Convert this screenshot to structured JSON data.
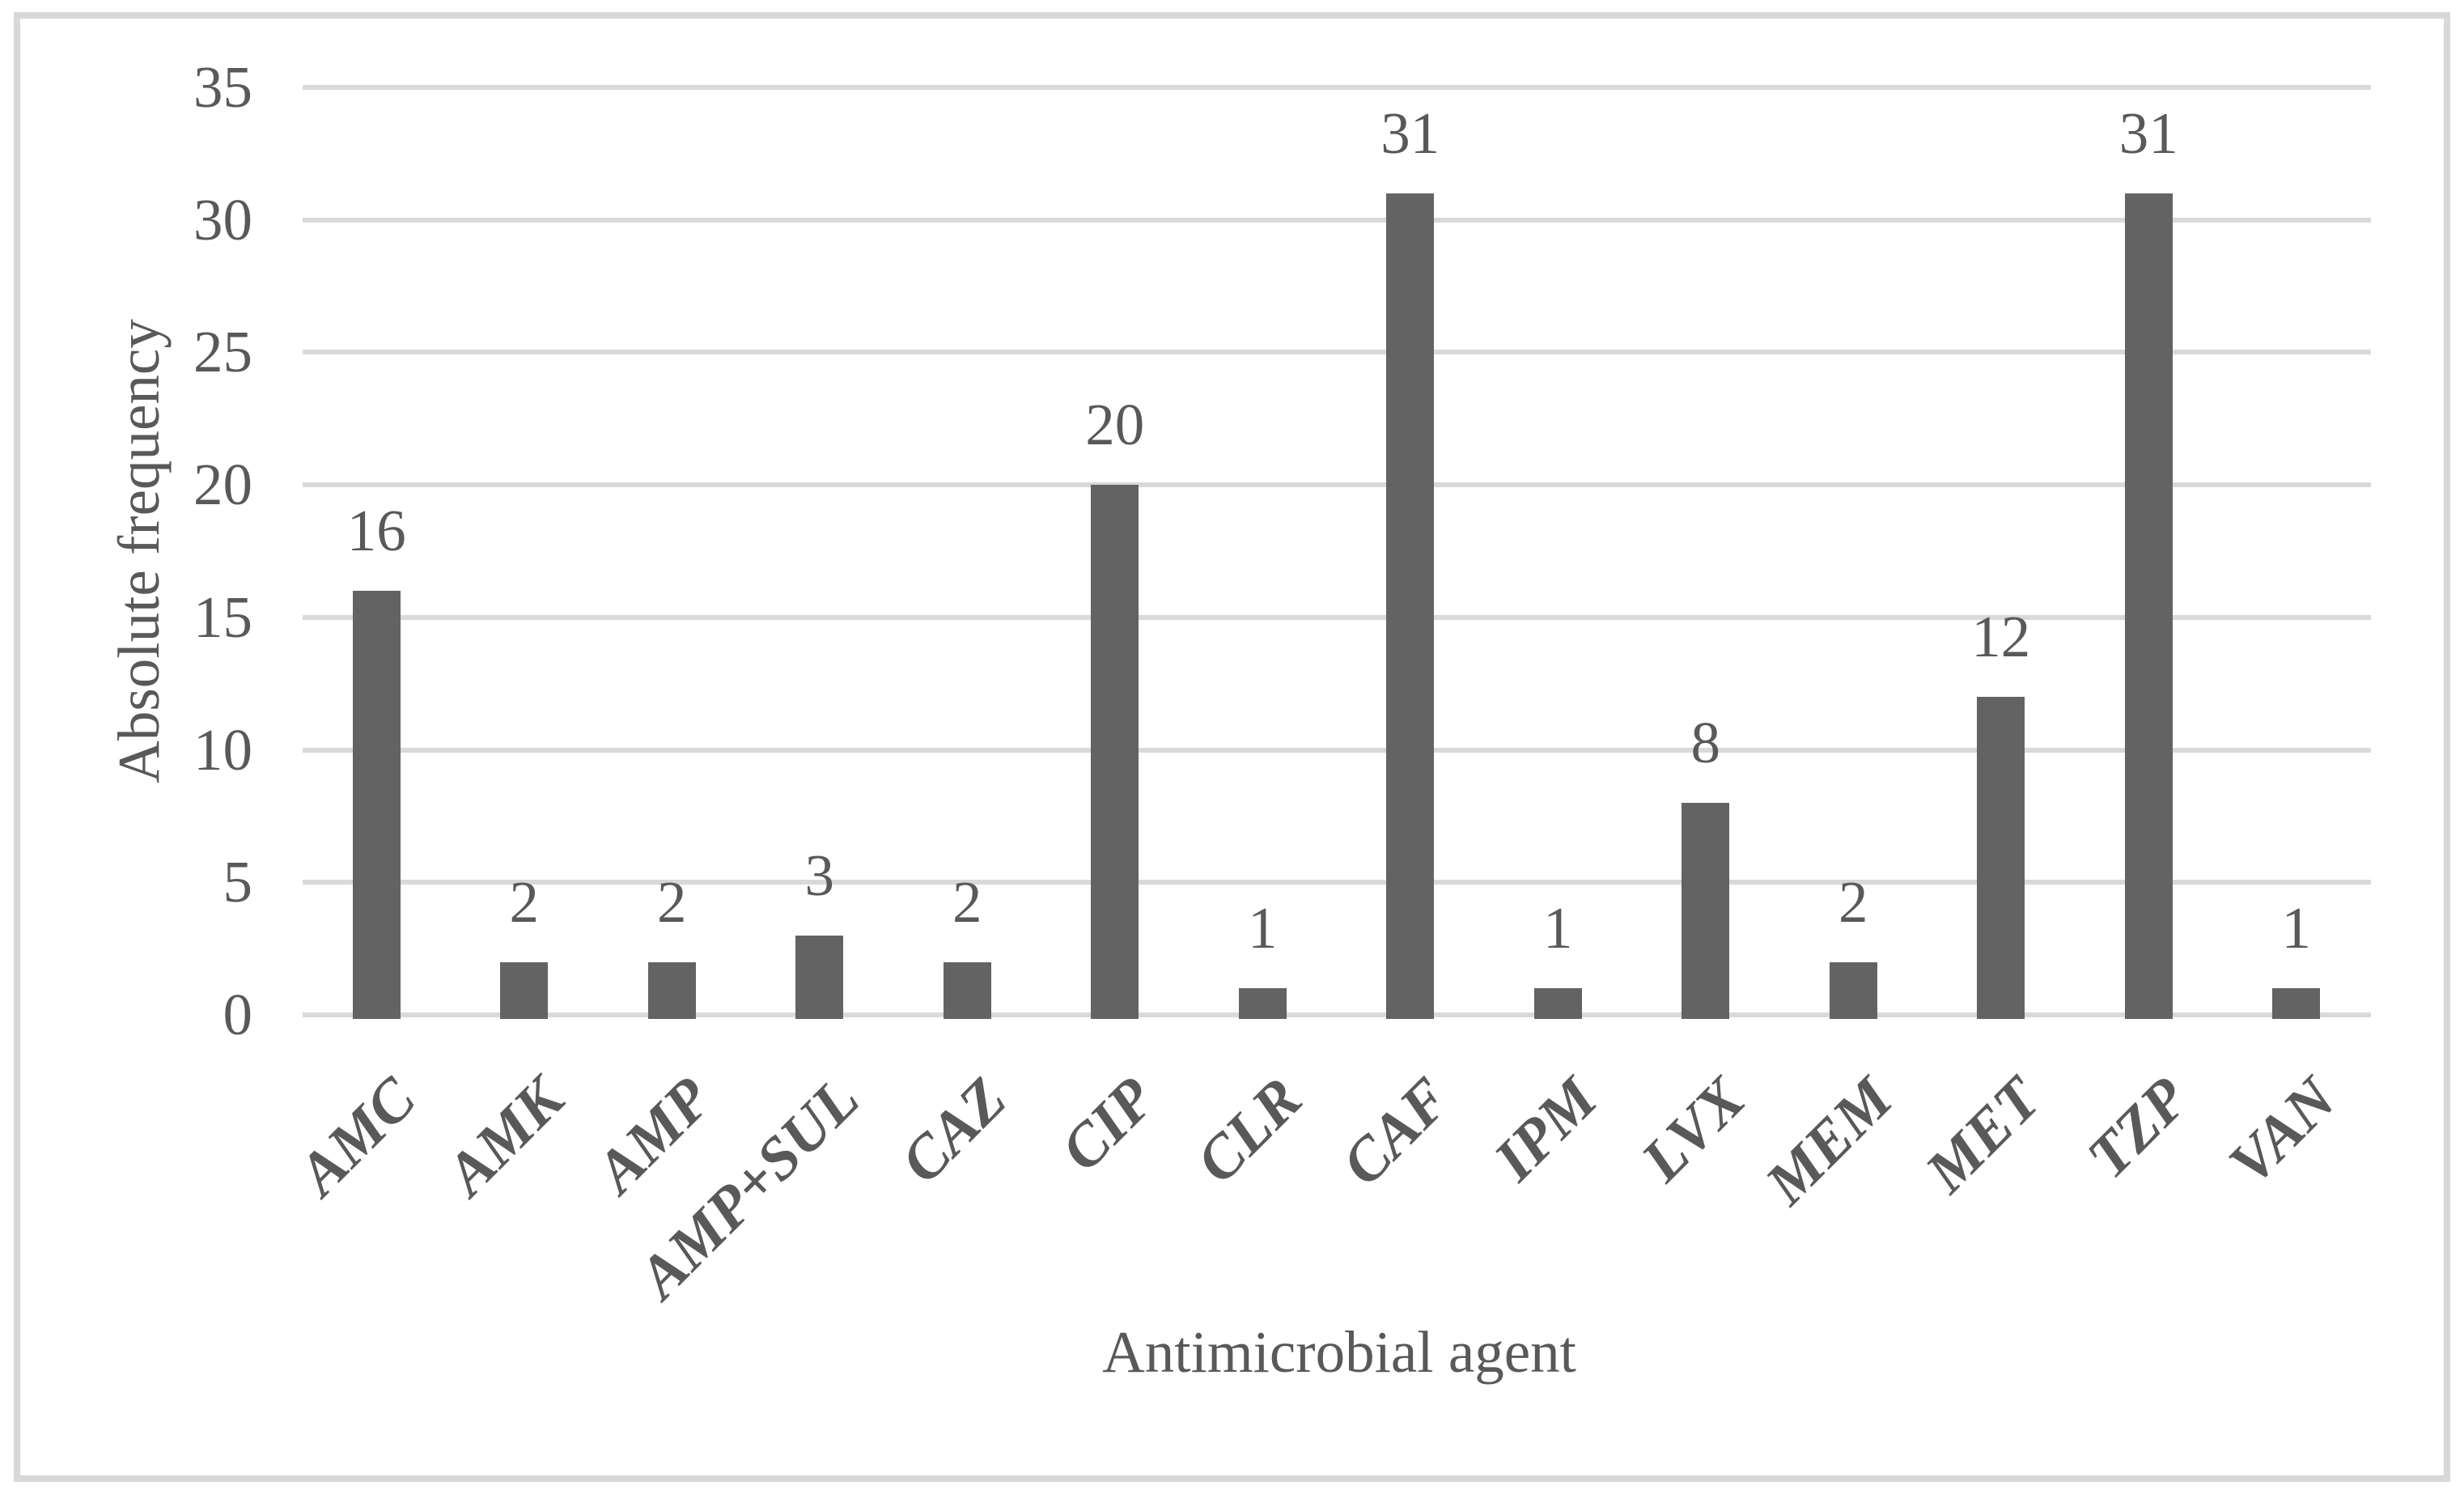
{
  "figure": {
    "background_color": "#ffffff",
    "border_color": "#d8d8d8"
  },
  "chart_data": {
    "type": "bar",
    "title": "",
    "categories": [
      "AMC",
      "AMK",
      "AMP",
      "AMP+SUL",
      "CAZ",
      "CIP",
      "CLR",
      "CAF",
      "IPM",
      "LVX",
      "MEM",
      "MET",
      "TZP",
      "VAN"
    ],
    "values": [
      16,
      2,
      2,
      3,
      2,
      20,
      1,
      31,
      1,
      8,
      2,
      12,
      31,
      1
    ],
    "data_labels": [
      "16",
      "2",
      "2",
      "3",
      "2",
      "20",
      "1",
      "31",
      "1",
      "8",
      "2",
      "12",
      "31",
      "1"
    ],
    "xlabel": "Antimicrobial agent",
    "ylabel": "Absolute frequency",
    "ylim": [
      0,
      35
    ],
    "yticks": [
      "0",
      "5",
      "10",
      "15",
      "20",
      "25",
      "30",
      "35"
    ],
    "ytick_values": [
      0,
      5,
      10,
      15,
      20,
      25,
      30,
      35
    ],
    "grid": "horizontal",
    "legend": "none",
    "bar_color": "#636363",
    "gridline_color": "#d9d9d9",
    "text_color": "#595959"
  }
}
